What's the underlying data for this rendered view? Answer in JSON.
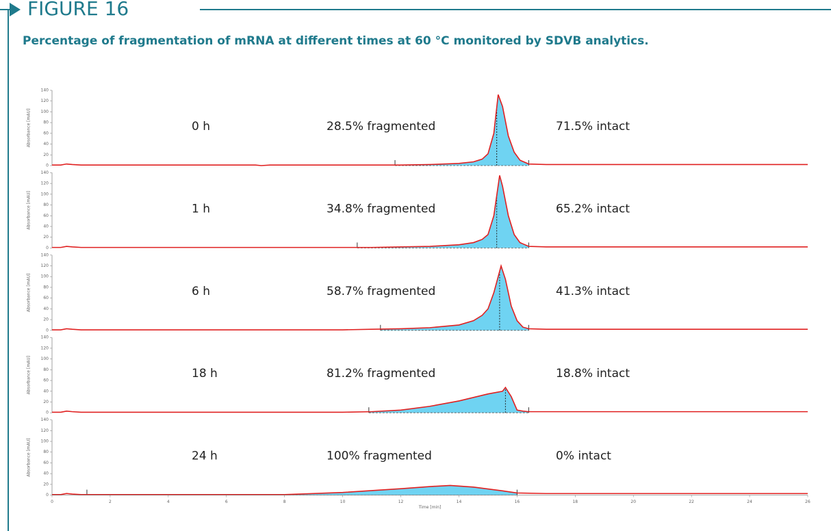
{
  "header": {
    "figure": "FIGURE 16",
    "caption": "Percentage of fragmentation of mRNA at different times at 60 °C monitored by SDVB analytics."
  },
  "chart_data": [
    {
      "type": "line",
      "ylabel": "Absorbance [mAU]",
      "label": "0 h",
      "fragmented": "28.5% fragmented",
      "intact": "71.5% intact",
      "xlim": [
        0,
        26
      ],
      "ylim": [
        0,
        140
      ],
      "yticks": [
        0,
        20,
        40,
        60,
        80,
        100,
        120,
        140
      ],
      "integration": [
        11.8,
        16.4
      ],
      "split": 15.3,
      "series": [
        {
          "color": "#e02020",
          "x": [
            0,
            0.3,
            0.5,
            0.7,
            1,
            4,
            7,
            7.2,
            7.5,
            10,
            12,
            13,
            14,
            14.5,
            14.8,
            15.0,
            15.2,
            15.35,
            15.5,
            15.7,
            15.9,
            16.1,
            16.4,
            17,
            20,
            26
          ],
          "values": [
            1,
            1,
            3,
            2,
            1,
            1,
            1,
            0,
            1,
            1,
            1,
            2,
            4,
            7,
            12,
            22,
            60,
            132,
            110,
            55,
            25,
            10,
            3,
            2,
            2,
            2
          ]
        }
      ]
    },
    {
      "type": "line",
      "ylabel": "Absorbance [mAU]",
      "label": "1 h",
      "fragmented": "34.8% fragmented",
      "intact": "65.2% intact",
      "xlim": [
        0,
        26
      ],
      "ylim": [
        0,
        140
      ],
      "yticks": [
        0,
        20,
        40,
        60,
        80,
        100,
        120,
        140
      ],
      "integration": [
        10.5,
        16.4
      ],
      "split": 15.3,
      "series": [
        {
          "color": "#e02020",
          "x": [
            0,
            0.3,
            0.5,
            0.7,
            1,
            4,
            7,
            10,
            11,
            12,
            13,
            14,
            14.5,
            14.8,
            15.0,
            15.2,
            15.4,
            15.5,
            15.7,
            15.9,
            16.1,
            16.4,
            17,
            20,
            26
          ],
          "values": [
            1,
            1,
            3,
            2,
            1,
            1,
            1,
            1,
            1,
            2,
            3,
            6,
            10,
            16,
            25,
            60,
            135,
            115,
            60,
            25,
            10,
            3,
            2,
            2,
            2
          ]
        }
      ]
    },
    {
      "type": "line",
      "ylabel": "Absorbance [mAU]",
      "label": "6 h",
      "fragmented": "58.7% fragmented",
      "intact": "41.3% intact",
      "xlim": [
        0,
        26
      ],
      "ylim": [
        0,
        140
      ],
      "yticks": [
        0,
        20,
        40,
        60,
        80,
        100,
        120,
        140
      ],
      "integration": [
        11.3,
        16.4
      ],
      "split": 15.4,
      "series": [
        {
          "color": "#e02020",
          "x": [
            0,
            0.3,
            0.5,
            0.7,
            1,
            4,
            7,
            10,
            11,
            12,
            13,
            14,
            14.5,
            14.8,
            15.0,
            15.2,
            15.45,
            15.6,
            15.8,
            16.0,
            16.2,
            16.4,
            17,
            20,
            26
          ],
          "values": [
            1,
            1,
            3,
            2,
            1,
            1,
            1,
            1,
            2,
            3,
            5,
            10,
            18,
            28,
            40,
            70,
            120,
            95,
            45,
            18,
            6,
            3,
            2,
            2,
            2
          ]
        }
      ]
    },
    {
      "type": "line",
      "ylabel": "Absorbance [mAU]",
      "label": "18 h",
      "fragmented": "81.2% fragmented",
      "intact": "18.8% intact",
      "xlim": [
        0,
        26
      ],
      "ylim": [
        0,
        140
      ],
      "yticks": [
        0,
        20,
        40,
        60,
        80,
        100,
        120,
        140
      ],
      "integration": [
        10.9,
        16.4
      ],
      "split": 15.6,
      "series": [
        {
          "color": "#e02020",
          "x": [
            0,
            0.3,
            0.5,
            0.7,
            1,
            4,
            7,
            10,
            11,
            12,
            13,
            14,
            15,
            15.5,
            15.6,
            15.8,
            16.0,
            16.2,
            16.4,
            17,
            20,
            26
          ],
          "values": [
            1,
            1,
            3,
            2,
            1,
            1,
            1,
            1,
            2,
            5,
            12,
            22,
            35,
            40,
            47,
            30,
            5,
            3,
            2,
            2,
            2,
            2
          ]
        }
      ]
    },
    {
      "type": "line",
      "ylabel": "Absorbance [mAU]",
      "xlabel": "Time [min]",
      "label": "24 h",
      "fragmented": "100% fragmented",
      "intact": "0% intact",
      "xlim": [
        0,
        26
      ],
      "ylim": [
        0,
        140
      ],
      "yticks": [
        0,
        20,
        40,
        60,
        80,
        100,
        120,
        140
      ],
      "xticks": [
        0,
        2,
        4,
        6,
        8,
        10,
        12,
        14,
        16,
        18,
        20,
        22,
        24,
        26
      ],
      "integration": [
        1.2,
        16.0
      ],
      "series": [
        {
          "color": "#e02020",
          "x": [
            0,
            0.3,
            0.5,
            0.7,
            1,
            4,
            8,
            10,
            12,
            13,
            13.7,
            14.5,
            15.5,
            16,
            17,
            20,
            26
          ],
          "values": [
            1,
            1,
            3,
            2,
            1,
            1,
            1,
            5,
            12,
            16,
            18,
            15,
            8,
            4,
            3,
            3,
            3
          ]
        }
      ]
    }
  ]
}
